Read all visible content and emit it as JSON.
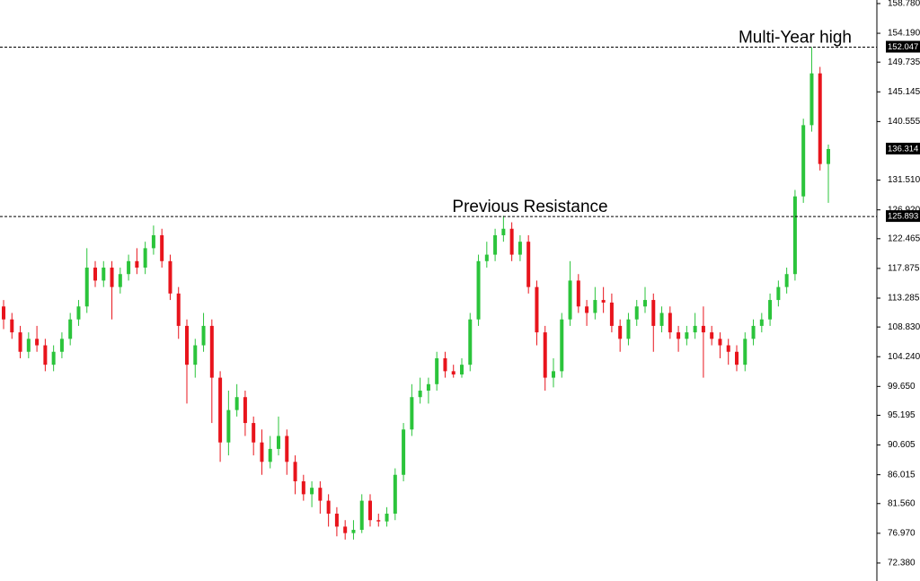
{
  "chart_data": {
    "type": "candlestick",
    "up_color": "#2bc43b",
    "down_color": "#e8141c",
    "open": [
      112,
      110,
      108,
      105,
      107,
      106,
      103,
      105,
      107,
      110,
      112,
      118,
      116,
      118,
      115,
      117,
      119,
      118,
      121,
      123,
      119,
      114,
      109,
      103,
      106,
      109,
      101,
      91,
      96,
      98,
      94,
      91,
      88,
      90,
      92,
      88,
      85,
      83,
      84,
      82,
      80,
      78,
      77,
      77.5,
      82,
      79,
      78.8,
      80,
      86,
      93,
      98,
      99,
      100,
      104,
      102,
      101.5,
      103,
      110,
      119,
      120,
      123,
      124,
      120,
      122,
      115,
      108,
      101,
      102,
      110,
      116,
      112,
      111,
      113,
      112.6,
      109,
      107,
      110,
      112,
      113,
      109,
      111,
      108,
      107,
      108,
      109,
      108,
      107,
      106,
      105,
      103,
      107,
      109,
      110,
      113,
      115,
      117,
      129,
      140,
      148,
      134
    ],
    "high": [
      113,
      111,
      109,
      108,
      109,
      107,
      106,
      108,
      111,
      113,
      121,
      119,
      119,
      119,
      118,
      120,
      121,
      122,
      124.5,
      124,
      120,
      115,
      110,
      107,
      111,
      110,
      102,
      99,
      100,
      99,
      95,
      93,
      92,
      95,
      93,
      89,
      86,
      85,
      85,
      83,
      81,
      79,
      79,
      83,
      83,
      80,
      81,
      87,
      94,
      100,
      101,
      101,
      105,
      105,
      103,
      104,
      111,
      120,
      122,
      124,
      126,
      125,
      123,
      123,
      116,
      109,
      104,
      111,
      119,
      117,
      113,
      115,
      115,
      114,
      110,
      111,
      113,
      115,
      114,
      112,
      112,
      109,
      109,
      111,
      112,
      109,
      108,
      107,
      106,
      108,
      110,
      111,
      114,
      116,
      118,
      130,
      141,
      152.047,
      149,
      137
    ],
    "low": [
      108.5,
      107,
      104,
      104,
      105,
      102,
      102,
      104,
      106,
      109,
      111,
      115,
      115,
      110,
      114,
      116,
      117,
      117,
      120,
      118,
      113,
      107,
      97,
      101,
      105,
      94,
      88,
      89,
      95,
      92,
      89,
      86,
      87,
      89,
      86,
      83,
      82,
      81,
      80,
      78,
      76.5,
      76,
      76,
      77,
      78,
      78,
      78,
      79,
      85,
      92,
      97,
      97,
      99,
      101,
      101,
      101,
      102,
      109,
      118,
      119,
      122,
      119,
      119,
      114,
      106,
      99,
      99.5,
      101,
      109,
      111,
      109,
      110,
      111,
      108,
      105,
      106,
      109,
      111,
      105,
      108,
      107,
      105,
      106,
      107,
      101,
      106,
      104,
      103,
      102,
      102,
      106,
      108,
      109,
      112,
      114,
      116,
      128,
      139,
      133,
      128
    ],
    "close": [
      110,
      108,
      105,
      107,
      106,
      103,
      105,
      107,
      110,
      112,
      118,
      116,
      118,
      115,
      117,
      119,
      118,
      121,
      123,
      119,
      114,
      109,
      103,
      106,
      109,
      101,
      91,
      96,
      98,
      94,
      91,
      88,
      90,
      92,
      88,
      85,
      83,
      84,
      82,
      80,
      78,
      77,
      77.5,
      82,
      79,
      78.8,
      80,
      86,
      93,
      98,
      99,
      100,
      104,
      102,
      101.5,
      103,
      110,
      119,
      120,
      123,
      124,
      120,
      122,
      115,
      108,
      101,
      102,
      110,
      116,
      112,
      111,
      113,
      112.6,
      109,
      107,
      110,
      112,
      113,
      109,
      111,
      108,
      107,
      108,
      109,
      108,
      107,
      106,
      105,
      103,
      107,
      109,
      110,
      113,
      115,
      117,
      129,
      140,
      148,
      134,
      136.314
    ],
    "ylim": [
      69.6,
      159.33
    ],
    "yticks": [
      {
        "value": 158.78,
        "label": "158.780"
      },
      {
        "value": 154.19,
        "label": "154.190"
      },
      {
        "value": 149.735,
        "label": "149.735"
      },
      {
        "value": 145.145,
        "label": "145.145"
      },
      {
        "value": 140.555,
        "label": "140.555"
      },
      {
        "value": 131.51,
        "label": "131.510"
      },
      {
        "value": 126.92,
        "label": "126.920"
      },
      {
        "value": 122.465,
        "label": "122.465"
      },
      {
        "value": 117.875,
        "label": "117.875"
      },
      {
        "value": 113.285,
        "label": "113.285"
      },
      {
        "value": 108.83,
        "label": "108.830"
      },
      {
        "value": 104.24,
        "label": "104.240"
      },
      {
        "value": 99.65,
        "label": "99.650"
      },
      {
        "value": 95.195,
        "label": "95.195"
      },
      {
        "value": 90.605,
        "label": "90.605"
      },
      {
        "value": 86.015,
        "label": "86.015"
      },
      {
        "value": 81.56,
        "label": "81.560"
      },
      {
        "value": 76.97,
        "label": "76.970"
      },
      {
        "value": 72.38,
        "label": "72.380"
      }
    ],
    "levels": [
      {
        "value": 152.047,
        "text": "Multi-Year high"
      },
      {
        "value": 125.893,
        "text": "Previous Resistance"
      }
    ],
    "last_price": 136.314
  }
}
